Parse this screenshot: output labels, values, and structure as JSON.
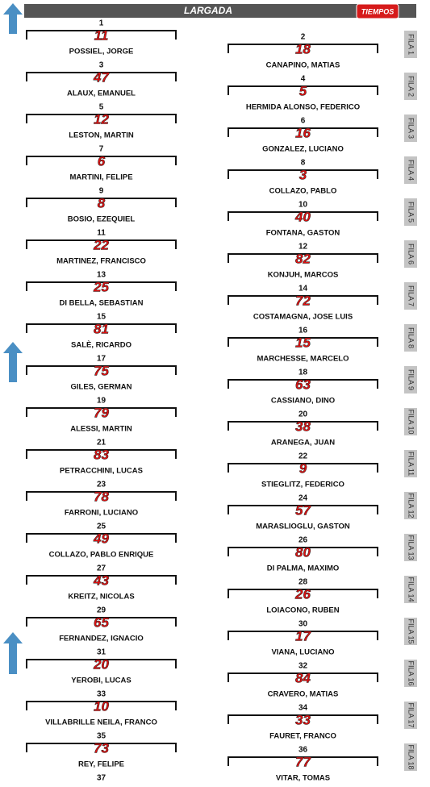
{
  "header": {
    "title": "LARGADA",
    "logo": "TIEMPOS"
  },
  "grid": [
    {
      "position": 1,
      "number": 11,
      "driver": "POSSIEL, JORGE"
    },
    {
      "position": 2,
      "number": 18,
      "driver": "CANAPINO, MATIAS"
    },
    {
      "position": 3,
      "number": 47,
      "driver": "ALAUX, EMANUEL"
    },
    {
      "position": 4,
      "number": 5,
      "driver": "HERMIDA ALONSO, FEDERICO"
    },
    {
      "position": 5,
      "number": 12,
      "driver": "LESTON, MARTIN"
    },
    {
      "position": 6,
      "number": 16,
      "driver": "GONZALEZ, LUCIANO"
    },
    {
      "position": 7,
      "number": 6,
      "driver": "MARTINI, FELIPE"
    },
    {
      "position": 8,
      "number": 3,
      "driver": "COLLAZO, PABLO"
    },
    {
      "position": 9,
      "number": 8,
      "driver": "BOSIO, EZEQUIEL"
    },
    {
      "position": 10,
      "number": 40,
      "driver": "FONTANA, GASTON"
    },
    {
      "position": 11,
      "number": 22,
      "driver": "MARTINEZ, FRANCISCO"
    },
    {
      "position": 12,
      "number": 82,
      "driver": "KONJUH, MARCOS"
    },
    {
      "position": 13,
      "number": 25,
      "driver": "DI BELLA, SEBASTIAN"
    },
    {
      "position": 14,
      "number": 72,
      "driver": "COSTAMAGNA, JOSE LUIS"
    },
    {
      "position": 15,
      "number": 81,
      "driver": "SALÈ, RICARDO"
    },
    {
      "position": 16,
      "number": 15,
      "driver": "MARCHESSE, MARCELO"
    },
    {
      "position": 17,
      "number": 75,
      "driver": "GILES, GERMAN"
    },
    {
      "position": 18,
      "number": 63,
      "driver": "CASSIANO, DINO"
    },
    {
      "position": 19,
      "number": 79,
      "driver": "ALESSI, MARTIN"
    },
    {
      "position": 20,
      "number": 38,
      "driver": "ARANEGA, JUAN"
    },
    {
      "position": 21,
      "number": 83,
      "driver": "PETRACCHINI, LUCAS"
    },
    {
      "position": 22,
      "number": 9,
      "driver": "STIEGLITZ, FEDERICO"
    },
    {
      "position": 23,
      "number": 78,
      "driver": "FARRONI, LUCIANO"
    },
    {
      "position": 24,
      "number": 57,
      "driver": "MARASLIOGLU, GASTON"
    },
    {
      "position": 25,
      "number": 49,
      "driver": "COLLAZO, PABLO ENRIQUE"
    },
    {
      "position": 26,
      "number": 80,
      "driver": "DI PALMA, MAXIMO"
    },
    {
      "position": 27,
      "number": 43,
      "driver": "KREITZ, NICOLAS"
    },
    {
      "position": 28,
      "number": 26,
      "driver": "LOIACONO, RUBEN"
    },
    {
      "position": 29,
      "number": 65,
      "driver": "FERNANDEZ, IGNACIO"
    },
    {
      "position": 30,
      "number": 17,
      "driver": "VIANA, LUCIANO"
    },
    {
      "position": 31,
      "number": 20,
      "driver": "YEROBI, LUCAS"
    },
    {
      "position": 32,
      "number": 84,
      "driver": "CRAVERO, MATIAS"
    },
    {
      "position": 33,
      "number": 10,
      "driver": "VILLABRILLE NEILA, FRANCO"
    },
    {
      "position": 34,
      "number": 33,
      "driver": "FAURET, FRANCO"
    },
    {
      "position": 35,
      "number": 73,
      "driver": "REY, FELIPE"
    },
    {
      "position": 36,
      "number": 77,
      "driver": "VITAR, TOMAS"
    }
  ],
  "rows": [
    "FILA 1",
    "FILA 2",
    "FILA 3",
    "FILA 4",
    "FILA 5",
    "FILA 6",
    "FILA 7",
    "FILA 8",
    "FILA 9",
    "FILA 10",
    "FILA 11",
    "FILA 12",
    "FILA 13",
    "FILA 14",
    "FILA 15",
    "FILA 16",
    "FILA 17",
    "FILA 18"
  ],
  "last_position": 37
}
